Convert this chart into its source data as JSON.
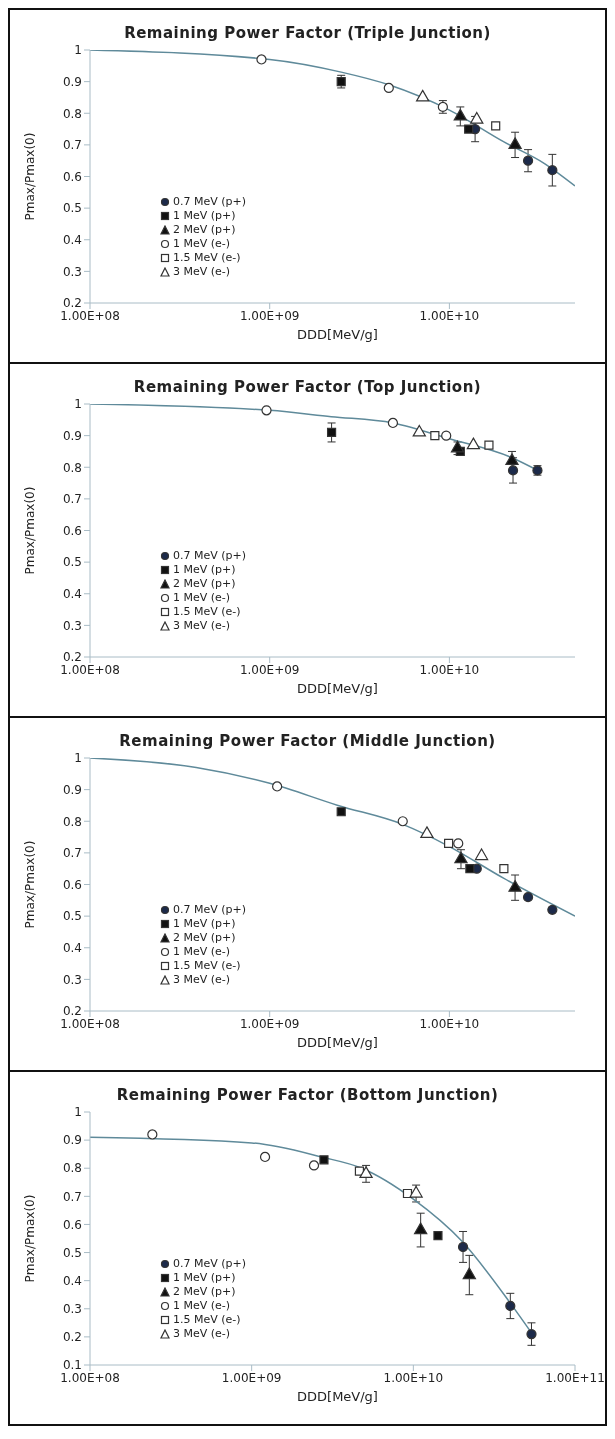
{
  "chart_data": [
    {
      "type": "scatter",
      "title": "Remaining Power Factor (Triple Junction)",
      "xlabel": "DDD[MeV/g]",
      "ylabel": "Pmax/Pmax(0)",
      "log": "x",
      "legend": "bottom left",
      "xlim": [
        100000000.0,
        50000000000.0
      ],
      "xticks": [
        {
          "value": 100000000.0,
          "label": "1.00E+08"
        },
        {
          "value": 1000000000.0,
          "label": "1.00E+09"
        },
        {
          "value": 10000000000.0,
          "label": "1.00E+10"
        }
      ],
      "ylim": [
        0.2,
        1
      ],
      "yticks": [
        0.2,
        0.3,
        0.4,
        0.5,
        0.6,
        0.7,
        0.8,
        0.9,
        1
      ],
      "series": [
        {
          "name": "0.7 MeV (p+)",
          "color": "#1c2a4a",
          "marker": "circle",
          "x": [
            13900000000.0,
            27400000000.0,
            37400000000.0
          ],
          "values": [
            0.75,
            0.65,
            0.62
          ],
          "errors": [
            0.04,
            0.035,
            0.05
          ]
        },
        {
          "name": "1 MeV (p+)",
          "color": "#111111",
          "marker": "square",
          "x": [
            2500000000.0,
            12800000000.0
          ],
          "values": [
            0.9,
            0.75
          ],
          "errors": [
            0.02,
            null
          ]
        },
        {
          "name": "2 MeV (p+)",
          "color": "#111111",
          "marker": "triangle",
          "x": [
            11500000000.0,
            23200000000.0
          ],
          "values": [
            0.79,
            0.7
          ],
          "errors": [
            0.03,
            0.04
          ]
        },
        {
          "name": "1 MeV (e-)",
          "color": "#ffffff",
          "marker": "circle",
          "x": [
            900000000.0,
            4600000000.0,
            9200000000.0
          ],
          "values": [
            0.97,
            0.88,
            0.82
          ],
          "errors": [
            null,
            null,
            0.02
          ]
        },
        {
          "name": "1.5 MeV (e-)",
          "color": "#ffffff",
          "marker": "square",
          "x": [
            18100000000.0
          ],
          "values": [
            0.76
          ]
        },
        {
          "name": "3 MeV (e-)",
          "color": "#ffffff",
          "marker": "triangle",
          "x": [
            7100000000.0,
            14200000000.0
          ],
          "values": [
            0.85,
            0.78
          ]
        },
        {
          "type": "line",
          "color": "#5f8a9a",
          "x": [
            100000000.0,
            1000000000.0,
            2500000000.0,
            4600000000.0,
            10000000000.0,
            20000000000.0,
            34000000000.0,
            50000000000.0
          ],
          "values": [
            1.0,
            0.97,
            0.93,
            0.89,
            0.81,
            0.71,
            0.64,
            0.57
          ]
        }
      ]
    },
    {
      "type": "scatter",
      "title": "Remaining Power Factor (Top Junction)",
      "xlabel": "DDD[MeV/g]",
      "ylabel": "Pmax/Pmax(0)",
      "log": "x",
      "legend": "bottom left",
      "xlim": [
        100000000.0,
        50000000000.0
      ],
      "xticks": [
        {
          "value": 100000000.0,
          "label": "1.00E+08"
        },
        {
          "value": 1000000000.0,
          "label": "1.00E+09"
        },
        {
          "value": 10000000000.0,
          "label": "1.00E+10"
        }
      ],
      "ylim": [
        0.2,
        1
      ],
      "yticks": [
        0.2,
        0.3,
        0.4,
        0.5,
        0.6,
        0.7,
        0.8,
        0.9,
        1
      ],
      "series": [
        {
          "name": "0.7 MeV (p+)",
          "color": "#1c2a4a",
          "marker": "circle",
          "x": [
            22600000000.0,
            30900000000.0
          ],
          "values": [
            0.79,
            0.79
          ],
          "errors": [
            0.04,
            0.015
          ]
        },
        {
          "name": "1 MeV (p+)",
          "color": "#111111",
          "marker": "square",
          "x": [
            2210000000.0,
            11500000000.0
          ],
          "values": [
            0.91,
            0.85
          ],
          "errors": [
            0.03,
            null
          ]
        },
        {
          "name": "2 MeV (p+)",
          "color": "#111111",
          "marker": "triangle",
          "x": [
            11100000000.0,
            22300000000.0
          ],
          "values": [
            0.86,
            0.82
          ],
          "errors": [
            0.02,
            0.03
          ]
        },
        {
          "name": "1 MeV (e-)",
          "color": "#ffffff",
          "marker": "circle",
          "x": [
            960000000.0,
            4850000000.0,
            9600000000.0
          ],
          "values": [
            0.98,
            0.94,
            0.9
          ]
        },
        {
          "name": "1.5 MeV (e-)",
          "color": "#ffffff",
          "marker": "square",
          "x": [
            8300000000.0,
            16600000000.0
          ],
          "values": [
            0.9,
            0.87
          ]
        },
        {
          "name": "3 MeV (e-)",
          "color": "#ffffff",
          "marker": "triangle",
          "x": [
            6800000000.0,
            13600000000.0
          ],
          "values": [
            0.91,
            0.87
          ]
        },
        {
          "type": "line",
          "color": "#5f8a9a",
          "x": [
            100000000.0,
            1000000000.0,
            2200000000.0,
            4850000000.0,
            10000000000.0,
            22300000000.0,
            31000000000.0
          ],
          "values": [
            1.0,
            0.98,
            0.96,
            0.94,
            0.89,
            0.83,
            0.79
          ]
        }
      ]
    },
    {
      "type": "scatter",
      "title": "Remaining Power Factor (Middle Junction)",
      "xlabel": "DDD[MeV/g]",
      "ylabel": "Pmax/Pmax(0)",
      "log": "x",
      "legend": "bottom left",
      "xlim": [
        100000000.0,
        50000000000.0
      ],
      "xticks": [
        {
          "value": 100000000.0,
          "label": "1.00E+08"
        },
        {
          "value": 1000000000.0,
          "label": "1.00E+09"
        },
        {
          "value": 10000000000.0,
          "label": "1.00E+10"
        }
      ],
      "ylim": [
        0.2,
        1
      ],
      "yticks": [
        0.2,
        0.3,
        0.4,
        0.5,
        0.6,
        0.7,
        0.8,
        0.9,
        1
      ],
      "series": [
        {
          "name": "0.7 MeV (p+)",
          "color": "#1c2a4a",
          "marker": "circle",
          "x": [
            14200000000.0,
            27400000000.0,
            37400000000.0
          ],
          "values": [
            0.65,
            0.56,
            0.52
          ]
        },
        {
          "name": "1 MeV (p+)",
          "color": "#111111",
          "marker": "square",
          "x": [
            2500000000.0,
            13000000000.0
          ],
          "values": [
            0.83,
            0.65
          ]
        },
        {
          "name": "2 MeV (p+)",
          "color": "#111111",
          "marker": "triangle",
          "x": [
            11600000000.0,
            23200000000.0
          ],
          "values": [
            0.68,
            0.59
          ],
          "errors": [
            0.03,
            0.04
          ]
        },
        {
          "name": "1 MeV (e-)",
          "color": "#ffffff",
          "marker": "circle",
          "x": [
            1100000000.0,
            5500000000.0,
            11200000000.0
          ],
          "values": [
            0.91,
            0.8,
            0.73
          ]
        },
        {
          "name": "1.5 MeV (e-)",
          "color": "#ffffff",
          "marker": "square",
          "x": [
            9900000000.0,
            20100000000.0
          ],
          "values": [
            0.73,
            0.65
          ]
        },
        {
          "name": "3 MeV (e-)",
          "color": "#ffffff",
          "marker": "triangle",
          "x": [
            7500000000.0,
            15100000000.0
          ],
          "values": [
            0.76,
            0.69
          ]
        },
        {
          "type": "line",
          "color": "#5f8a9a",
          "x": [
            100000000.0,
            390000000.0,
            1000000000.0,
            2400000000.0,
            5500000000.0,
            10000000000.0,
            20000000000.0,
            50000000000.0
          ],
          "values": [
            1.0,
            0.97,
            0.92,
            0.85,
            0.79,
            0.72,
            0.62,
            0.5
          ]
        }
      ]
    },
    {
      "type": "scatter",
      "title": "Remaining Power Factor (Bottom Junction)",
      "xlabel": "DDD[MeV/g]",
      "ylabel": "Pmax/Pmax(0)",
      "log": "x",
      "legend": "bottom left",
      "xlim": [
        100000000.0,
        100000000000.0
      ],
      "xticks": [
        {
          "value": 100000000.0,
          "label": "1.00E+08"
        },
        {
          "value": 1000000000.0,
          "label": "1.00E+09"
        },
        {
          "value": 10000000000.0,
          "label": "1.00E+10"
        },
        {
          "value": 100000000000.0,
          "label": "1.00E+11"
        }
      ],
      "ylim": [
        0.1,
        1
      ],
      "yticks": [
        0.1,
        0.2,
        0.3,
        0.4,
        0.5,
        0.6,
        0.7,
        0.8,
        0.9,
        1
      ],
      "series": [
        {
          "name": "0.7 MeV (p+)",
          "color": "#1c2a4a",
          "marker": "circle",
          "x": [
            20300000000.0,
            39800000000.0,
            53800000000.0
          ],
          "values": [
            0.52,
            0.31,
            0.21
          ],
          "errors": [
            0.055,
            0.045,
            0.04
          ]
        },
        {
          "name": "1 MeV (p+)",
          "color": "#111111",
          "marker": "square",
          "x": [
            2800000000.0,
            14200000000.0
          ],
          "values": [
            0.83,
            0.56
          ]
        },
        {
          "name": "2 MeV (p+)",
          "color": "#111111",
          "marker": "triangle",
          "x": [
            11100000000.0,
            22200000000.0
          ],
          "values": [
            0.58,
            0.42
          ],
          "errors": [
            0.06,
            0.07
          ]
        },
        {
          "name": "1 MeV (e-)",
          "color": "#ffffff",
          "marker": "circle",
          "x": [
            243000000.0,
            1210000000.0,
            2430000000.0
          ],
          "values": [
            0.92,
            0.84,
            0.81
          ]
        },
        {
          "name": "1.5 MeV (e-)",
          "color": "#ffffff",
          "marker": "square",
          "x": [
            4640000000.0,
            9200000000.0
          ],
          "values": [
            0.79,
            0.71
          ]
        },
        {
          "name": "3 MeV (e-)",
          "color": "#ffffff",
          "marker": "triangle",
          "x": [
            5100000000.0,
            10400000000.0
          ],
          "values": [
            0.78,
            0.71
          ],
          "errors": [
            0.03,
            0.03
          ]
        },
        {
          "type": "line",
          "color": "#5f8a9a",
          "x": [
            100000000.0,
            1000000000.0,
            2700000000.0,
            4800000000.0,
            10000000000.0,
            20000000000.0,
            39800000000.0,
            56000000000.0
          ],
          "values": [
            0.91,
            0.89,
            0.84,
            0.8,
            0.69,
            0.54,
            0.32,
            0.2
          ]
        }
      ]
    }
  ]
}
